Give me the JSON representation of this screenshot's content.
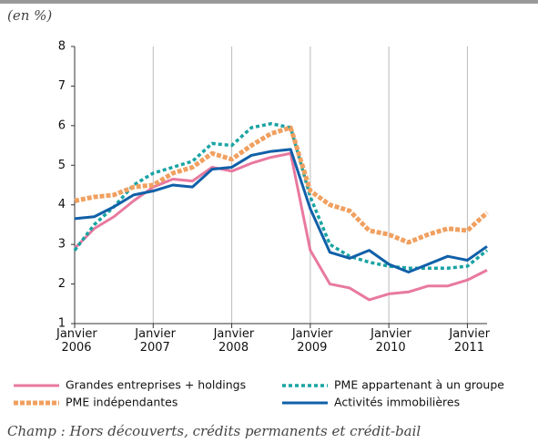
{
  "chart_data": {
    "type": "line",
    "unit_label": "(en %)",
    "footnote": "Champ : Hors découverts, crédits permanents et crédit-bail",
    "x": [
      2006,
      2006.25,
      2006.5,
      2006.75,
      2007,
      2007.25,
      2007.5,
      2007.75,
      2008,
      2008.25,
      2008.5,
      2008.75,
      2009,
      2009.25,
      2009.5,
      2009.75,
      2010,
      2010.25,
      2010.5,
      2010.75,
      2011,
      2011.25
    ],
    "xlim": [
      2006,
      2011.25
    ],
    "xticks": [
      {
        "value": 2006,
        "label": "Janvier 2006"
      },
      {
        "value": 2007,
        "label": "Janvier 2007"
      },
      {
        "value": 2008,
        "label": "Janvier 2008"
      },
      {
        "value": 2009,
        "label": "Janvier 2009"
      },
      {
        "value": 2010,
        "label": "Janvier 2010"
      },
      {
        "value": 2011,
        "label": "Janvier 2011"
      }
    ],
    "ylim": [
      1,
      8
    ],
    "yticks": [
      1,
      2,
      3,
      4,
      5,
      6,
      7,
      8
    ],
    "xgrid": true,
    "series": [
      {
        "name": "Grandes entreprises + holdings",
        "color": "#e8799f",
        "style": "solid",
        "values": [
          2.9,
          3.4,
          3.7,
          4.1,
          4.45,
          4.65,
          4.6,
          4.95,
          4.85,
          5.05,
          5.2,
          5.3,
          2.85,
          2.0,
          1.9,
          1.6,
          1.75,
          1.8,
          1.95,
          1.95,
          2.1,
          2.35
        ]
      },
      {
        "name": "PME appartenant à un groupe",
        "color": "#1aa3a3",
        "style": "dotted",
        "values": [
          2.85,
          3.5,
          3.95,
          4.5,
          4.8,
          4.95,
          5.1,
          5.55,
          5.5,
          5.95,
          6.05,
          5.95,
          4.2,
          3.0,
          2.7,
          2.55,
          2.45,
          2.4,
          2.4,
          2.4,
          2.45,
          2.85
        ]
      },
      {
        "name": "PME indépendantes",
        "color": "#f0a060",
        "style": "dashed",
        "values": [
          4.1,
          4.2,
          4.25,
          4.45,
          4.5,
          4.8,
          4.95,
          5.3,
          5.15,
          5.5,
          5.8,
          5.95,
          4.35,
          4.0,
          3.85,
          3.35,
          3.25,
          3.05,
          3.25,
          3.4,
          3.35,
          3.8
        ]
      },
      {
        "name": "Activités immobilières",
        "color": "#1060a8",
        "style": "solid",
        "values": [
          3.65,
          3.7,
          3.95,
          4.25,
          4.35,
          4.5,
          4.45,
          4.9,
          4.95,
          5.25,
          5.35,
          5.4,
          3.9,
          2.8,
          2.65,
          2.85,
          2.5,
          2.3,
          2.5,
          2.7,
          2.6,
          2.95
        ]
      }
    ]
  }
}
